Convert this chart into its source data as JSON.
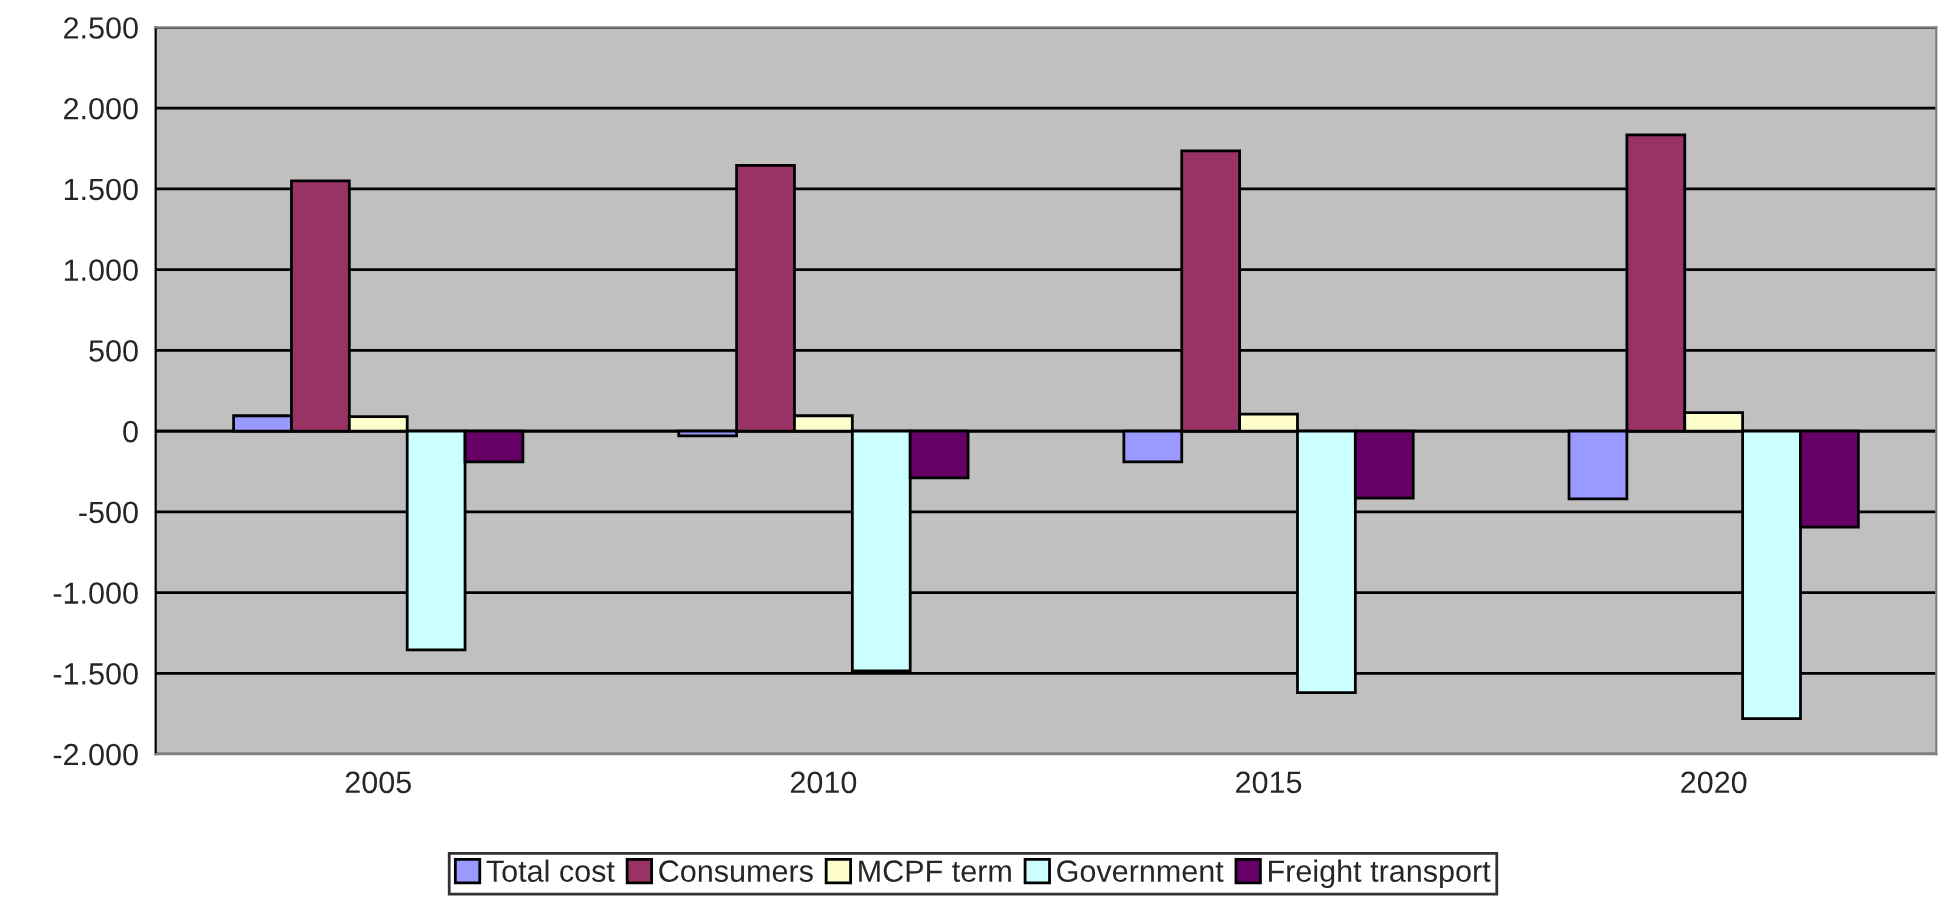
{
  "chart_data": {
    "type": "bar",
    "categories": [
      "2005",
      "2010",
      "2015",
      "2020"
    ],
    "series": [
      {
        "name": "Total cost",
        "color": "#9999ff",
        "values": [
          95,
          -30,
          -190,
          -420
        ]
      },
      {
        "name": "Consumers",
        "color": "#993366",
        "values": [
          1550,
          1645,
          1735,
          1835
        ]
      },
      {
        "name": "MCPF term",
        "color": "#ffffcc",
        "values": [
          90,
          95,
          105,
          115
        ]
      },
      {
        "name": "Government",
        "color": "#ccffff",
        "values": [
          -1355,
          -1485,
          -1620,
          -1780
        ]
      },
      {
        "name": "Freight transport",
        "color": "#660066",
        "values": [
          -190,
          -290,
          -415,
          -595
        ]
      }
    ],
    "ylim": [
      -2000,
      2500
    ],
    "yticks": [
      {
        "value": -2000,
        "label": "-2.000"
      },
      {
        "value": -1500,
        "label": "-1.500"
      },
      {
        "value": -1000,
        "label": "-1.000"
      },
      {
        "value": -500,
        "label": "-500"
      },
      0,
      500,
      {
        "value": 1000,
        "label": "1.000"
      },
      {
        "value": 1500,
        "label": "1.500"
      },
      {
        "value": 2000,
        "label": "2.000"
      },
      {
        "value": 2500,
        "label": "2.500"
      }
    ],
    "grid": "y",
    "legend": "bottom"
  }
}
